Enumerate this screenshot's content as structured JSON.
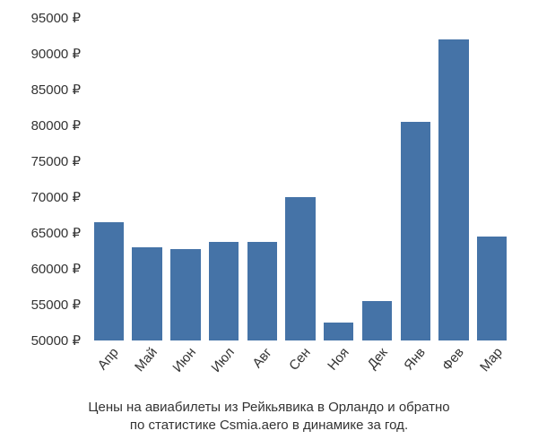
{
  "chart": {
    "type": "bar",
    "categories": [
      "Апр",
      "Май",
      "Июн",
      "Июл",
      "Авг",
      "Сен",
      "Ноя",
      "Дек",
      "Янв",
      "Фев",
      "Мар"
    ],
    "values": [
      66500,
      63000,
      62800,
      63800,
      63800,
      70000,
      52500,
      55500,
      80500,
      92000,
      64500
    ],
    "bar_color": "#4573a7",
    "background_color": "#ffffff",
    "y_axis": {
      "min": 50000,
      "max": 95000,
      "step": 5000,
      "suffix": " ₽",
      "ticks": [
        50000,
        55000,
        60000,
        65000,
        70000,
        75000,
        80000,
        85000,
        90000,
        95000
      ]
    },
    "label_fontsize": 15,
    "label_color": "#333333",
    "x_label_rotation_deg": -50,
    "bar_width_ratio": 0.78
  },
  "caption": {
    "line1": "Цены на авиабилеты из Рейкьявика в Орландо и обратно",
    "line2": "по статистике Csmia.aero в динамике за год."
  }
}
